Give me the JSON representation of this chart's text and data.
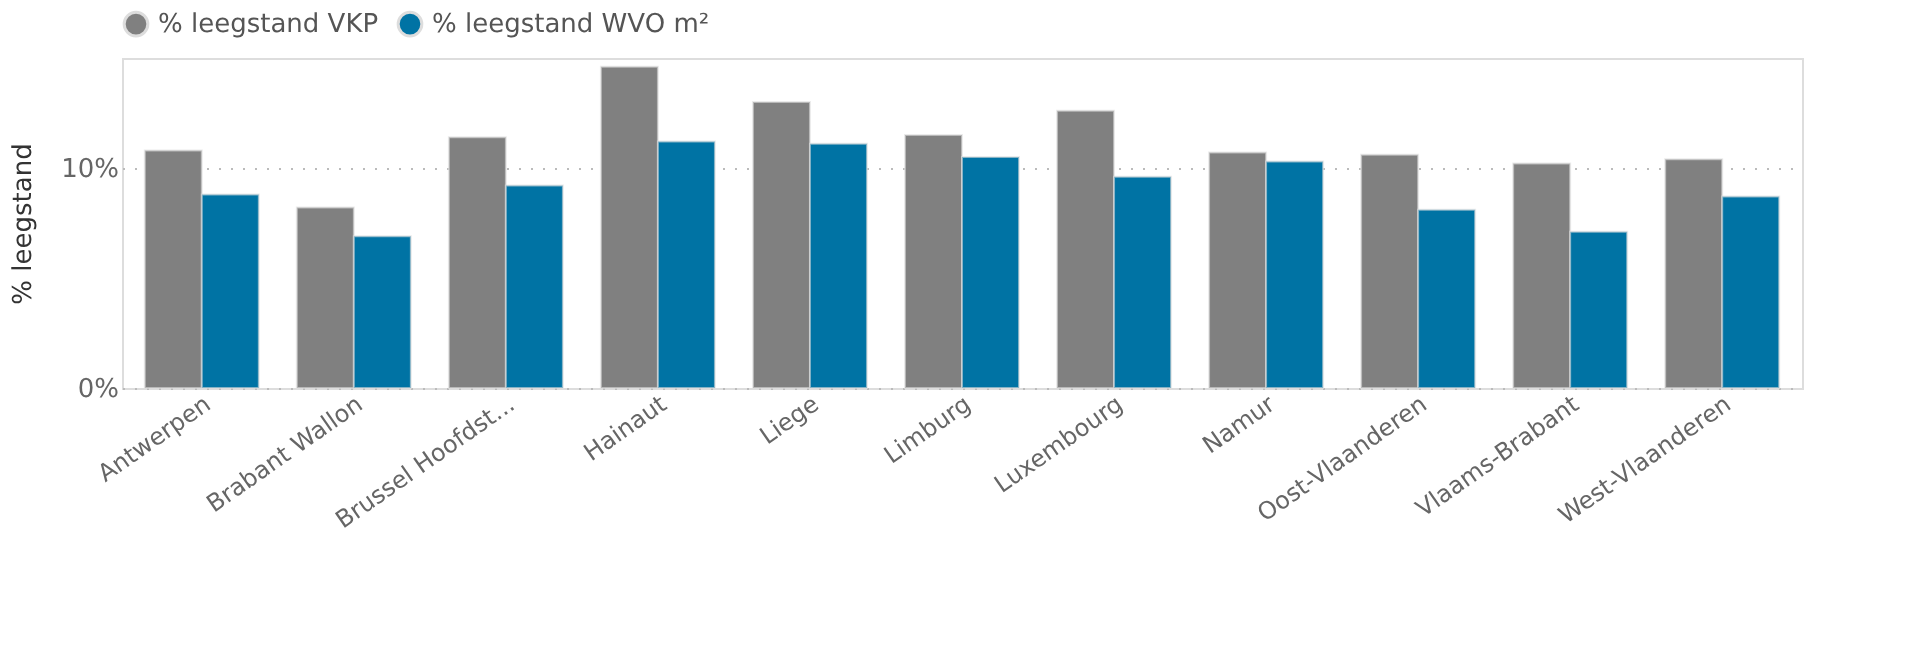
{
  "chart_data": {
    "type": "bar",
    "ylabel": "% leegstand",
    "categories": [
      "Antwerpen",
      "Brabant Wallon",
      "Brussel Hoofdst...",
      "Hainaut",
      "Liege",
      "Limburg",
      "Luxembourg",
      "Namur",
      "Oost-Vlaanderen",
      "Vlaams-Brabant",
      "West-Vlaanderen"
    ],
    "series": [
      {
        "name": "% leegstand VKP",
        "color": "#808080",
        "values": [
          10.8,
          8.2,
          11.4,
          14.6,
          13.0,
          11.5,
          12.6,
          10.7,
          10.6,
          10.2,
          10.4
        ]
      },
      {
        "name": "% leegstand WVO m²",
        "color": "#0073a4",
        "values": [
          8.8,
          6.9,
          9.2,
          11.2,
          11.1,
          10.5,
          9.6,
          10.3,
          8.1,
          7.1,
          8.7
        ]
      }
    ],
    "ylim": [
      0,
      15
    ],
    "yticks": [
      {
        "value": 0,
        "label": "0%"
      },
      {
        "value": 10,
        "label": "10%"
      }
    ],
    "grid": "y",
    "legend": "top left"
  }
}
